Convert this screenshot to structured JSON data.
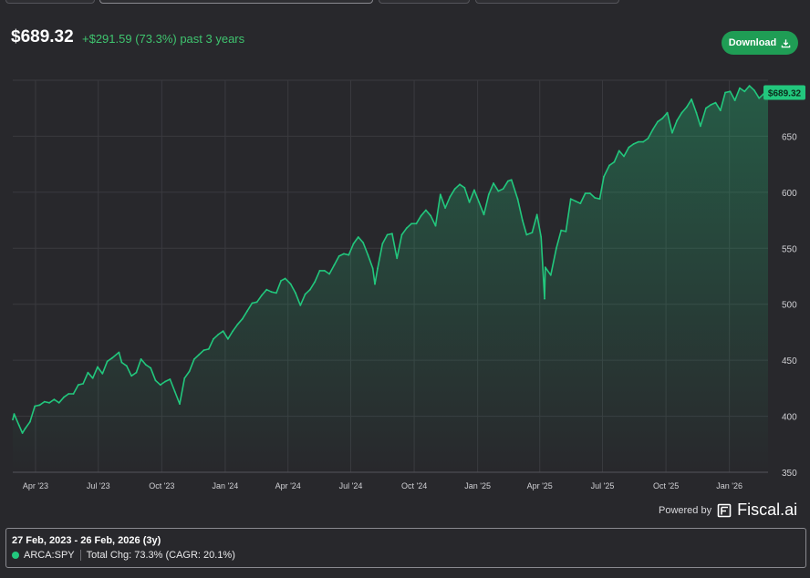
{
  "header": {
    "price": "$689.32",
    "change": "+$291.59 (73.3%) past 3 years",
    "download_label": "Download",
    "download_icon": "download-icon"
  },
  "footer": {
    "powered_by": "Powered by",
    "brand": "Fiscal.ai",
    "brand_icon": "fiscal-logo-icon"
  },
  "legend": {
    "range": "27 Feb, 2023 - 26 Feb, 2026 (3y)",
    "ticker": "ARCA:SPY",
    "summary": "Total Chg: 73.3% (CAGR: 20.1%)"
  },
  "colors": {
    "background": "#28282c",
    "line": "#22c77d",
    "positive": "#3fc46f",
    "button": "#1f9d55",
    "grid": "#3a3a3f"
  },
  "chart_data": {
    "type": "area",
    "x_tick_labels": [
      "Apr '23",
      "Jul '23",
      "Oct '23",
      "Jan '24",
      "Apr '24",
      "Jul '24",
      "Oct '24",
      "Jan '25",
      "Apr '25",
      "Jul '25",
      "Oct '25",
      "Jan '26"
    ],
    "y_tick_labels": [
      "350",
      "400",
      "450",
      "500",
      "550",
      "600",
      "650"
    ],
    "ylim": [
      350,
      700
    ],
    "y_position": "right",
    "grid": true,
    "last_value_label": "$689.32",
    "series": [
      {
        "x": [
          "2023-02-27",
          "2023-03-01",
          "2023-03-08",
          "2023-03-13",
          "2023-03-17",
          "2023-03-24",
          "2023-03-31",
          "2023-04-07",
          "2023-04-14",
          "2023-04-21",
          "2023-04-28",
          "2023-05-05",
          "2023-05-12",
          "2023-05-19",
          "2023-05-26",
          "2023-06-02",
          "2023-06-09",
          "2023-06-16",
          "2023-06-23",
          "2023-06-30",
          "2023-07-07",
          "2023-07-14",
          "2023-07-21",
          "2023-07-31",
          "2023-08-04",
          "2023-08-11",
          "2023-08-18",
          "2023-08-25",
          "2023-09-01",
          "2023-09-08",
          "2023-09-15",
          "2023-09-22",
          "2023-09-29",
          "2023-10-06",
          "2023-10-13",
          "2023-10-20",
          "2023-10-27",
          "2023-11-03",
          "2023-11-10",
          "2023-11-17",
          "2023-11-24",
          "2023-12-01",
          "2023-12-08",
          "2023-12-15",
          "2023-12-22",
          "2023-12-29",
          "2024-01-05",
          "2024-01-12",
          "2024-01-19",
          "2024-01-26",
          "2024-02-02",
          "2024-02-09",
          "2024-02-16",
          "2024-02-23",
          "2024-03-01",
          "2024-03-08",
          "2024-03-15",
          "2024-03-22",
          "2024-03-28",
          "2024-04-05",
          "2024-04-12",
          "2024-04-19",
          "2024-04-26",
          "2024-05-03",
          "2024-05-10",
          "2024-05-17",
          "2024-05-24",
          "2024-05-31",
          "2024-06-07",
          "2024-06-14",
          "2024-06-21",
          "2024-06-28",
          "2024-07-05",
          "2024-07-12",
          "2024-07-19",
          "2024-07-26",
          "2024-08-02",
          "2024-08-05",
          "2024-08-09",
          "2024-08-16",
          "2024-08-23",
          "2024-08-30",
          "2024-09-06",
          "2024-09-13",
          "2024-09-20",
          "2024-09-27",
          "2024-10-04",
          "2024-10-11",
          "2024-10-18",
          "2024-10-25",
          "2024-11-01",
          "2024-11-08",
          "2024-11-15",
          "2024-11-22",
          "2024-11-29",
          "2024-12-06",
          "2024-12-13",
          "2024-12-20",
          "2024-12-27",
          "2025-01-03",
          "2025-01-10",
          "2025-01-17",
          "2025-01-24",
          "2025-01-31",
          "2025-02-07",
          "2025-02-14",
          "2025-02-19",
          "2025-02-28",
          "2025-03-07",
          "2025-03-13",
          "2025-03-21",
          "2025-03-28",
          "2025-04-03",
          "2025-04-08",
          "2025-04-09",
          "2025-04-17",
          "2025-04-25",
          "2025-05-02",
          "2025-05-09",
          "2025-05-16",
          "2025-05-23",
          "2025-05-30",
          "2025-06-06",
          "2025-06-13",
          "2025-06-20",
          "2025-06-27",
          "2025-07-03",
          "2025-07-11",
          "2025-07-18",
          "2025-07-25",
          "2025-08-01",
          "2025-08-08",
          "2025-08-15",
          "2025-08-22",
          "2025-08-29",
          "2025-09-05",
          "2025-09-12",
          "2025-09-19",
          "2025-09-26",
          "2025-10-03",
          "2025-10-10",
          "2025-10-17",
          "2025-10-24",
          "2025-10-31",
          "2025-11-07",
          "2025-11-14",
          "2025-11-20",
          "2025-11-28",
          "2025-12-05",
          "2025-12-12",
          "2025-12-19",
          "2025-12-26",
          "2026-01-02",
          "2026-01-09",
          "2026-01-16",
          "2026-01-23",
          "2026-01-30",
          "2026-02-06",
          "2026-02-13",
          "2026-02-20",
          "2026-02-26"
        ],
        "values": [
          397,
          402,
          392,
          385,
          389,
          395,
          409,
          410,
          413,
          412,
          415,
          412,
          417,
          420,
          420,
          428,
          429,
          439,
          434,
          444,
          438,
          449,
          452,
          457,
          448,
          445,
          436,
          439,
          451,
          446,
          443,
          432,
          428,
          431,
          433,
          422,
          411,
          434,
          440,
          451,
          455,
          459,
          460,
          469,
          473,
          476,
          469,
          476,
          482,
          487,
          494,
          501,
          502,
          508,
          513,
          511,
          510,
          521,
          523,
          518,
          510,
          499,
          509,
          513,
          520,
          530,
          530,
          527,
          535,
          543,
          545,
          544,
          554,
          560,
          555,
          544,
          532,
          518,
          532,
          554,
          562,
          563,
          541,
          562,
          568,
          572,
          572,
          579,
          584,
          579,
          570,
          598,
          586,
          596,
          603,
          607,
          604,
          591,
          602,
          591,
          580,
          598,
          608,
          601,
          603,
          610,
          611,
          594,
          575,
          562,
          564,
          580,
          560,
          505,
          533,
          526,
          550,
          566,
          565,
          594,
          592,
          590,
          599,
          599,
          595,
          594,
          614,
          624,
          627,
          637,
          632,
          640,
          643,
          645,
          645,
          648,
          656,
          663,
          666,
          671,
          653,
          664,
          671,
          676,
          683,
          671,
          659,
          675,
          678,
          680,
          673,
          689,
          690,
          682,
          693,
          690,
          695,
          691,
          684,
          688,
          689
        ]
      }
    ]
  }
}
